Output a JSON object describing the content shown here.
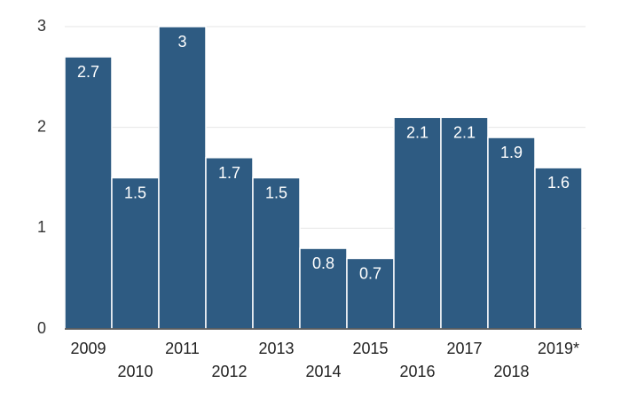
{
  "chart_data": {
    "type": "bar",
    "title": "",
    "xlabel": "",
    "ylabel": "",
    "categories": [
      "2009",
      "2010",
      "2011",
      "2012",
      "2013",
      "2014",
      "2015",
      "2016",
      "2017",
      "2018",
      "2019*"
    ],
    "values": [
      2.7,
      1.5,
      3,
      1.7,
      1.5,
      0.8,
      0.7,
      2.1,
      2.1,
      1.9,
      1.6
    ],
    "value_labels": [
      "2.7",
      "1.5",
      "3",
      "1.7",
      "1.5",
      "0.8",
      "0.7",
      "2.1",
      "2.1",
      "1.9",
      "1.6"
    ],
    "ylim": [
      0,
      3
    ],
    "yticks": [
      "0",
      "1",
      "2",
      "3"
    ],
    "grid": true,
    "legend": "none",
    "x_labels_staggered": true
  },
  "colors": {
    "bar": "#2e5b82",
    "grid": "#e6e6e6",
    "axis": "#444444"
  }
}
